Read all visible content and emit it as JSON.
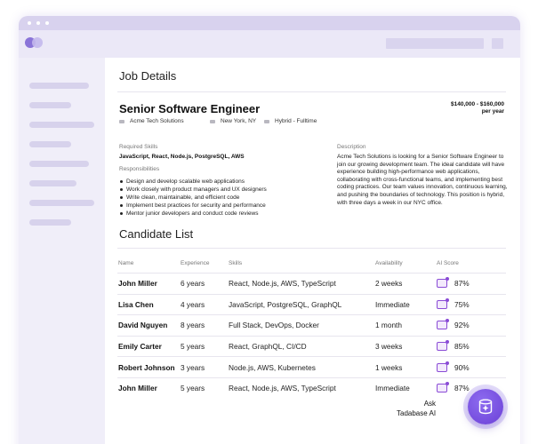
{
  "colors": {
    "accent": "#6b3fd6",
    "sidebar": "#f0eef9",
    "titlebar": "#d8d2ee",
    "toolbar": "#ebe8f7",
    "logo_left": "#8a74d8",
    "logo_right": "#c3b8ec"
  },
  "page": {
    "title": "Job Details"
  },
  "job": {
    "title": "Senior Software Engineer",
    "salary_range": "$140,000 - $160,000",
    "salary_period": "per year",
    "company": "Acme Tech Solutions",
    "location": "New York, NY",
    "work_type": "Hybrid - Fulltime",
    "skills_label": "Required Skills",
    "skills": "JavaScript, React, Node.js, PostgreSQL, AWS",
    "responsibilities_label": "Responsibilities",
    "responsibilities": [
      "Design and develop scalable web applications",
      "Work closely with product managers and UX designers",
      "Write clean, maintainable, and efficient code",
      "Implement best practices for security and performance",
      "Mentor junior developers and conduct code reviews"
    ],
    "description_label": "Description",
    "description": "Acme Tech Solutions is looking for a Senior Software Engineer to join our growing development team. The ideal candidate will have experience building high-performance web applications, collaborating with cross-functional teams, and implementing best coding practices. Our team values innovation, continuous learning, and pushing the boundaries of technology. This position is hybrid, with three days a week in our NYC office."
  },
  "candidates": {
    "title": "Candidate List",
    "columns": [
      "Name",
      "Experience",
      "Skills",
      "Availability",
      "AI Score"
    ],
    "rows": [
      {
        "name": "John Miller",
        "experience": "6 years",
        "skills": "React, Node.js, AWS, TypeScript",
        "availability": "2 weeks",
        "ai_score": "87%"
      },
      {
        "name": "Lisa Chen",
        "experience": "4 years",
        "skills": "JavaScript, PostgreSQL, GraphQL",
        "availability": "Immediate",
        "ai_score": "75%"
      },
      {
        "name": "David Nguyen",
        "experience": "8 years",
        "skills": "Full Stack, DevOps, Docker",
        "availability": "1 month",
        "ai_score": "92%"
      },
      {
        "name": "Emily Carter",
        "experience": "5 years",
        "skills": "React, GraphQL, CI/CD",
        "availability": "3 weeks",
        "ai_score": "85%"
      },
      {
        "name": "Robert Johnson",
        "experience": "3 years",
        "skills": "Node.js, AWS, Kubernetes",
        "availability": "1 weeks",
        "ai_score": "90%"
      },
      {
        "name": "John Miller",
        "experience": "5 years",
        "skills": "React, Node.js, AWS, TypeScript",
        "availability": "Immediate",
        "ai_score": "87%"
      }
    ]
  },
  "assistant": {
    "line1": "Ask",
    "line2": "Tadabase AI",
    "icon": "ai-sparkle-icon"
  },
  "icons": {
    "score": "ai-score-icon",
    "meta": "tag-icon"
  }
}
